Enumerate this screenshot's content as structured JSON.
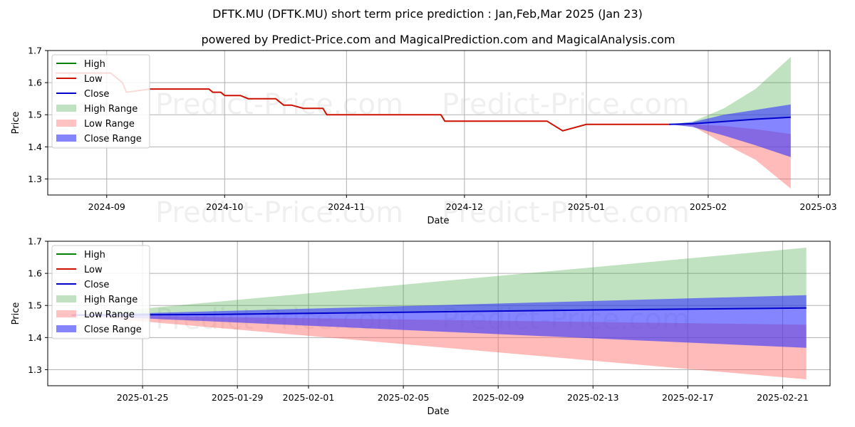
{
  "title": "DFTK.MU (DFTK.MU) short term price prediction : Jan,Feb,Mar 2025 (Jan 23)",
  "subtitle": "powered by Predict-Price.com and MagicalPrediction.com and MagicalAnalysis.com",
  "watermark": "Predict-Price.com",
  "colors": {
    "high": "#008000",
    "low": "#cc1100",
    "close": "#0000cc",
    "high_range": "#2e9e2e",
    "low_range": "#ff6666",
    "close_range": "#3333ff",
    "grid": "#b0b0b0"
  },
  "legend": [
    "High",
    "Low",
    "Close",
    "High Range",
    "Low Range",
    "Close Range"
  ],
  "chart_data": [
    {
      "type": "line",
      "xlabel": "Date",
      "ylabel": "Price",
      "ylim": [
        1.25,
        1.7
      ],
      "xlim": [
        "2024-08-17",
        "2025-03-04"
      ],
      "yticks": [
        "1.3",
        "1.4",
        "1.5",
        "1.6",
        "1.7"
      ],
      "xticks": [
        {
          "date": "2024-09-01",
          "label": "2024-09"
        },
        {
          "date": "2024-10-01",
          "label": "2024-10"
        },
        {
          "date": "2024-11-01",
          "label": "2024-11"
        },
        {
          "date": "2024-12-01",
          "label": "2024-12"
        },
        {
          "date": "2025-01-01",
          "label": "2025-01"
        },
        {
          "date": "2025-02-01",
          "label": "2025-02"
        },
        {
          "date": "2025-03-01",
          "label": "2025-03"
        }
      ],
      "legend_position": "top-left",
      "grid": true,
      "series": [
        {
          "name": "Low",
          "points": [
            [
              "2024-08-19",
              1.63
            ],
            [
              "2024-09-02",
              1.63
            ],
            [
              "2024-09-05",
              1.6
            ],
            [
              "2024-09-06",
              1.57
            ],
            [
              "2024-09-12",
              1.58
            ],
            [
              "2024-09-27",
              1.58
            ],
            [
              "2024-09-28",
              1.57
            ],
            [
              "2024-09-30",
              1.57
            ],
            [
              "2024-10-01",
              1.56
            ],
            [
              "2024-10-05",
              1.56
            ],
            [
              "2024-10-07",
              1.55
            ],
            [
              "2024-10-14",
              1.55
            ],
            [
              "2024-10-16",
              1.53
            ],
            [
              "2024-10-18",
              1.53
            ],
            [
              "2024-10-21",
              1.52
            ],
            [
              "2024-10-26",
              1.52
            ],
            [
              "2024-10-27",
              1.5
            ],
            [
              "2024-11-25",
              1.5
            ],
            [
              "2024-11-26",
              1.48
            ],
            [
              "2024-12-22",
              1.48
            ],
            [
              "2024-12-26",
              1.45
            ],
            [
              "2025-01-01",
              1.47
            ],
            [
              "2025-01-22",
              1.47
            ]
          ]
        },
        {
          "name": "Close",
          "points": [
            [
              "2025-01-22",
              1.47
            ],
            [
              "2025-01-28",
              1.472
            ],
            [
              "2025-02-05",
              1.479
            ],
            [
              "2025-02-13",
              1.486
            ],
            [
              "2025-02-22",
              1.492
            ]
          ]
        }
      ],
      "ranges": [
        {
          "name": "High Range",
          "upper": [
            [
              "2025-01-22",
              1.47
            ],
            [
              "2025-01-28",
              1.478
            ],
            [
              "2025-02-05",
              1.52
            ],
            [
              "2025-02-13",
              1.58
            ],
            [
              "2025-02-22",
              1.68
            ]
          ],
          "lower": [
            [
              "2025-01-22",
              1.47
            ],
            [
              "2025-01-28",
              1.47
            ],
            [
              "2025-02-05",
              1.479
            ],
            [
              "2025-02-13",
              1.486
            ],
            [
              "2025-02-22",
              1.492
            ]
          ]
        },
        {
          "name": "Low Range",
          "upper": [
            [
              "2025-01-22",
              1.47
            ],
            [
              "2025-01-28",
              1.47
            ],
            [
              "2025-02-05",
              1.465
            ],
            [
              "2025-02-13",
              1.455
            ],
            [
              "2025-02-22",
              1.44
            ]
          ],
          "lower": [
            [
              "2025-01-22",
              1.47
            ],
            [
              "2025-01-28",
              1.465
            ],
            [
              "2025-02-05",
              1.41
            ],
            [
              "2025-02-13",
              1.36
            ],
            [
              "2025-02-22",
              1.27
            ]
          ]
        },
        {
          "name": "Close Range",
          "upper": [
            [
              "2025-01-22",
              1.47
            ],
            [
              "2025-01-28",
              1.477
            ],
            [
              "2025-02-05",
              1.5
            ],
            [
              "2025-02-13",
              1.515
            ],
            [
              "2025-02-22",
              1.532
            ]
          ],
          "lower": [
            [
              "2025-01-22",
              1.47
            ],
            [
              "2025-01-28",
              1.462
            ],
            [
              "2025-02-05",
              1.435
            ],
            [
              "2025-02-13",
              1.405
            ],
            [
              "2025-02-22",
              1.368
            ]
          ]
        }
      ]
    },
    {
      "type": "line",
      "xlabel": "Date",
      "ylabel": "Price",
      "ylim": [
        1.25,
        1.7
      ],
      "xlim": [
        "2025-01-21",
        "2025-02-23"
      ],
      "yticks": [
        "1.3",
        "1.4",
        "1.5",
        "1.6",
        "1.7"
      ],
      "xticks": [
        {
          "date": "2025-01-25",
          "label": "2025-01-25"
        },
        {
          "date": "2025-01-29",
          "label": "2025-01-29"
        },
        {
          "date": "2025-02-01",
          "label": "2025-02-01"
        },
        {
          "date": "2025-02-05",
          "label": "2025-02-05"
        },
        {
          "date": "2025-02-09",
          "label": "2025-02-09"
        },
        {
          "date": "2025-02-13",
          "label": "2025-02-13"
        },
        {
          "date": "2025-02-17",
          "label": "2025-02-17"
        },
        {
          "date": "2025-02-21",
          "label": "2025-02-21"
        }
      ],
      "legend_position": "top-left",
      "grid": true,
      "series": [
        {
          "name": "Close",
          "points": [
            [
              "2025-01-22",
              1.47
            ],
            [
              "2025-01-28",
              1.472
            ],
            [
              "2025-02-05",
              1.479
            ],
            [
              "2025-02-13",
              1.486
            ],
            [
              "2025-02-22",
              1.492
            ]
          ]
        }
      ],
      "ranges": [
        {
          "name": "High Range",
          "upper": [
            [
              "2025-01-22",
              1.47
            ],
            [
              "2025-02-22",
              1.68
            ]
          ],
          "lower": [
            [
              "2025-01-22",
              1.47
            ],
            [
              "2025-02-22",
              1.492
            ]
          ]
        },
        {
          "name": "Low Range",
          "upper": [
            [
              "2025-01-22",
              1.47
            ],
            [
              "2025-02-22",
              1.44
            ]
          ],
          "lower": [
            [
              "2025-01-22",
              1.47
            ],
            [
              "2025-02-22",
              1.27
            ]
          ]
        },
        {
          "name": "Close Range",
          "upper": [
            [
              "2025-01-22",
              1.47
            ],
            [
              "2025-02-22",
              1.532
            ]
          ],
          "lower": [
            [
              "2025-01-22",
              1.47
            ],
            [
              "2025-02-22",
              1.368
            ]
          ]
        }
      ]
    }
  ]
}
